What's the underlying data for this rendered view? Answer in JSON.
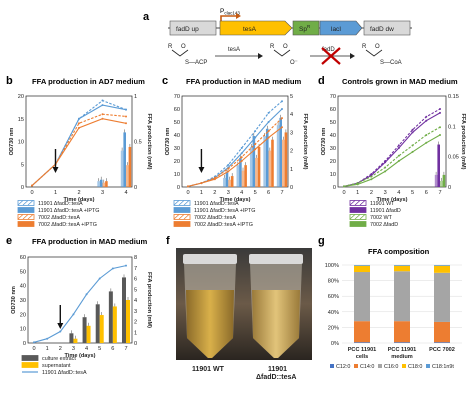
{
  "colors": {
    "blue": "#5b9bd5",
    "orange": "#ed7d31",
    "purple": "#7030a0",
    "green": "#70ad47",
    "gold": "#ffc000",
    "darkgray": "#595959",
    "lightgray": "#bfbfbf"
  },
  "panel_a": {
    "label": "a",
    "promoter": "P",
    "promoter_sub": "clac143",
    "genes": [
      "fadD up",
      "tesA",
      "Sp",
      "lacI",
      "fadD dw"
    ],
    "sp_superscript": "R",
    "enzyme_tesA": "tesA",
    "enzyme_fadD": "fadD",
    "acp": "S—ACP",
    "coa": "S—CoA",
    "r": "R"
  },
  "panel_f": {
    "label": "f",
    "tube_labels": [
      "11901 WT",
      "11901\nΔfadD::tesA"
    ]
  },
  "chart_data": [
    {
      "panel": "b",
      "type": "line+bar",
      "title": "FFA production in AD7 medium",
      "xlabel": "Time (days)",
      "ylabel": "OD730 nm",
      "y2label": "FFA production (mM)",
      "x_ticks": [
        "0",
        "1",
        "2",
        "3",
        "4"
      ],
      "y_ticks": [
        "0",
        "5",
        "10",
        "15",
        "20"
      ],
      "y2_ticks": [
        "0",
        "0.5",
        "1"
      ],
      "ylim": [
        0,
        20
      ],
      "y2lim": [
        0,
        1.25
      ],
      "arrow_day": 1,
      "series_od": [
        {
          "name": "11901 ΔfadD::tesA",
          "color": "blue",
          "dash": true,
          "x": [
            0,
            1,
            2,
            3,
            4
          ],
          "y": [
            0.3,
            5,
            15,
            19,
            17
          ]
        },
        {
          "name": "11901 ΔfadD::tesA +IPTG",
          "color": "blue",
          "dash": false,
          "x": [
            0,
            1,
            2,
            3,
            4
          ],
          "y": [
            0.3,
            5,
            15,
            18,
            17
          ]
        },
        {
          "name": "7002 ΔfadD::tesA",
          "color": "orange",
          "dash": true,
          "x": [
            0,
            1,
            2,
            3,
            4
          ],
          "y": [
            0.3,
            5,
            14,
            16,
            15.5
          ]
        },
        {
          "name": "7002 ΔfadD::tesA +IPTG",
          "color": "orange",
          "dash": false,
          "x": [
            0,
            1,
            2,
            3,
            4
          ],
          "y": [
            0.3,
            5,
            13,
            15,
            14
          ]
        }
      ],
      "bars_ffa": [
        {
          "x": 3,
          "values": [
            0.08,
            0.1,
            0.06,
            0.08
          ]
        },
        {
          "x": 4,
          "values": [
            0.5,
            0.75,
            0.3,
            0.55
          ]
        }
      ]
    },
    {
      "panel": "c",
      "type": "line+bar",
      "title": "FFA production in MAD medium",
      "xlabel": "Time (days)",
      "ylabel": "OD730 nm",
      "y2label": "FFA production (mM)",
      "x_ticks": [
        "0",
        "1",
        "2",
        "3",
        "4",
        "5",
        "6",
        "7"
      ],
      "y_ticks": [
        "0",
        "10",
        "20",
        "30",
        "40",
        "50",
        "60",
        "70"
      ],
      "y2_ticks": [
        "0",
        "1",
        "2",
        "3",
        "4",
        "5"
      ],
      "ylim": [
        0,
        70
      ],
      "y2lim": [
        0,
        5
      ],
      "arrow_day": 1,
      "series_od": [
        {
          "name": "11901 ΔfadD::tesA",
          "color": "blue",
          "dash": true,
          "x": [
            0,
            1,
            2,
            3,
            4,
            5,
            6,
            7
          ],
          "y": [
            0.5,
            3,
            8,
            17,
            30,
            43,
            57,
            66
          ]
        },
        {
          "name": "11901 ΔfadD::tesA +IPTG",
          "color": "blue",
          "dash": false,
          "x": [
            0,
            1,
            2,
            3,
            4,
            5,
            6,
            7
          ],
          "y": [
            0.5,
            3,
            7,
            15,
            26,
            38,
            50,
            60
          ]
        },
        {
          "name": "7002 ΔfadD::tesA",
          "color": "orange",
          "dash": true,
          "x": [
            0,
            1,
            2,
            3,
            4,
            5,
            6,
            7
          ],
          "y": [
            0.5,
            3,
            7,
            14,
            23,
            33,
            43,
            53
          ]
        },
        {
          "name": "7002 ΔfadD::tesA +IPTG",
          "color": "orange",
          "dash": false,
          "x": [
            0,
            1,
            2,
            3,
            4,
            5,
            6,
            7
          ],
          "y": [
            0.5,
            3,
            6,
            12,
            20,
            29,
            38,
            46
          ]
        }
      ],
      "bars_ffa": [
        {
          "x": 3,
          "values": [
            0.5,
            0.8,
            0.4,
            0.6
          ]
        },
        {
          "x": 4,
          "values": [
            1.2,
            1.6,
            0.9,
            1.2
          ]
        },
        {
          "x": 5,
          "values": [
            2.2,
            2.8,
            1.6,
            2.2
          ]
        },
        {
          "x": 6,
          "values": [
            2.8,
            3.2,
            2.0,
            2.6
          ]
        },
        {
          "x": 7,
          "values": [
            3.4,
            3.8,
            2.6,
            3.0
          ]
        }
      ]
    },
    {
      "panel": "d",
      "type": "line+bar",
      "title": "Controls grown in MAD medium",
      "xlabel": "Time (days)",
      "ylabel": "OD730 nm",
      "y2label": "FFA production (mM)",
      "x_ticks": [
        "0",
        "1",
        "2",
        "3",
        "4",
        "5",
        "6",
        "7"
      ],
      "y_ticks": [
        "0",
        "10",
        "20",
        "30",
        "40",
        "50",
        "60",
        "70"
      ],
      "y2_ticks": [
        "0",
        "0.05",
        "0.1",
        "0.15"
      ],
      "ylim": [
        0,
        70
      ],
      "y2lim": [
        0,
        0.15
      ],
      "series_od": [
        {
          "name": "11901 WT",
          "color": "purple",
          "dash": true,
          "x": [
            0,
            1,
            2,
            3,
            4,
            5,
            6,
            7
          ],
          "y": [
            0.5,
            3,
            10,
            20,
            32,
            44,
            54,
            60
          ]
        },
        {
          "name": "11901 ΔfadD",
          "color": "purple",
          "dash": false,
          "x": [
            0,
            1,
            2,
            3,
            4,
            5,
            6,
            7
          ],
          "y": [
            0.5,
            3,
            9,
            19,
            30,
            42,
            51,
            57
          ]
        },
        {
          "name": "7002 WT",
          "color": "green",
          "dash": true,
          "x": [
            0,
            1,
            2,
            3,
            4,
            5,
            6,
            7
          ],
          "y": [
            0.5,
            3,
            8,
            15,
            24,
            32,
            40,
            46
          ]
        },
        {
          "name": "7002 ΔfadD",
          "color": "green",
          "dash": false,
          "x": [
            0,
            1,
            2,
            3,
            4,
            5,
            6,
            7
          ],
          "y": [
            0.5,
            2,
            6,
            12,
            20,
            27,
            34,
            40
          ]
        }
      ],
      "bars_ffa": [
        {
          "x": 7,
          "values": [
            0.02,
            0.07,
            0.01,
            0.02
          ]
        }
      ]
    },
    {
      "panel": "e",
      "type": "line+bar",
      "title": "FFA production in MAD medium",
      "xlabel": "Time (days)",
      "ylabel": "OD730 nm",
      "y2label": "FFA production (mM)",
      "x_ticks": [
        "0",
        "1",
        "2",
        "3",
        "4",
        "5",
        "6",
        "7"
      ],
      "y_ticks": [
        "0",
        "10",
        "20",
        "30",
        "40",
        "50",
        "60"
      ],
      "y2_ticks": [
        "0",
        "1",
        "2",
        "3",
        "4",
        "5",
        "6",
        "7",
        "8"
      ],
      "ylim": [
        0,
        60
      ],
      "y2lim": [
        0,
        8
      ],
      "arrow_day": 2,
      "series_od": [
        {
          "name": "11901 ΔfadD::tesA",
          "color": "blue",
          "dash": false,
          "x": [
            0,
            1,
            2,
            3,
            4,
            5,
            6,
            7
          ],
          "y": [
            0.5,
            3,
            8,
            20,
            34,
            45,
            52,
            54
          ]
        }
      ],
      "bar_series": [
        {
          "name": "culture extract",
          "color": "darkgray"
        },
        {
          "name": "supernatant",
          "color": "gold"
        }
      ],
      "bars_ffa": [
        {
          "x": 3,
          "values": [
            0.9,
            0.4
          ]
        },
        {
          "x": 4,
          "values": [
            2.4,
            1.6
          ]
        },
        {
          "x": 5,
          "values": [
            3.6,
            2.6
          ]
        },
        {
          "x": 6,
          "values": [
            4.8,
            3.4
          ]
        },
        {
          "x": 7,
          "values": [
            6.1,
            4.0
          ]
        }
      ]
    },
    {
      "panel": "g",
      "type": "stacked-bar",
      "title": "FFA composition",
      "categories": [
        "PCC 11901 cells",
        "PCC 11901 medium",
        "PCC 7002"
      ],
      "y_ticks": [
        "0%",
        "20%",
        "40%",
        "60%",
        "80%",
        "100%"
      ],
      "series": [
        {
          "name": "C12:0",
          "color": "#4472c4",
          "values": [
            1,
            1,
            1
          ]
        },
        {
          "name": "C14:0",
          "color": "#ed7d31",
          "values": [
            27,
            27,
            26
          ]
        },
        {
          "name": "C16:0",
          "color": "#a5a5a5",
          "values": [
            63,
            64,
            63
          ]
        },
        {
          "name": "C18:0",
          "color": "#ffc000",
          "values": [
            8,
            7,
            9
          ]
        },
        {
          "name": "C18:1n9t",
          "color": "#5b9bd5",
          "values": [
            1,
            1,
            1
          ]
        }
      ]
    }
  ]
}
